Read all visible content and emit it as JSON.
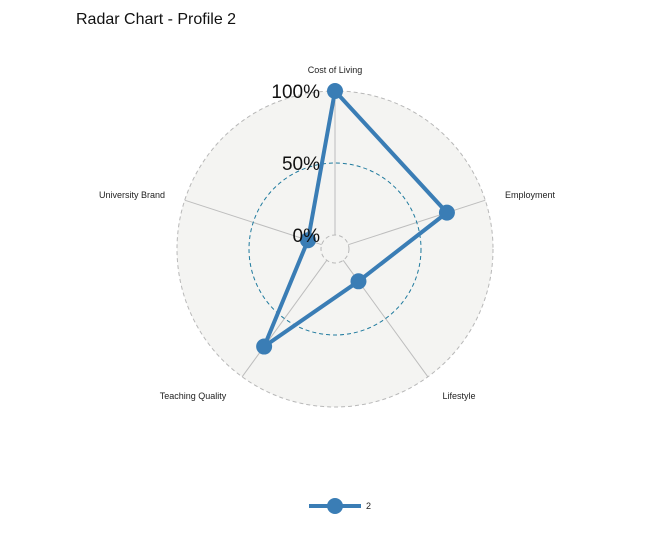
{
  "title": "Radar Chart - Profile 2",
  "chart_data": {
    "type": "radar",
    "axes": [
      "Cost of Living",
      "Employment",
      "Lifestyle",
      "Teaching Quality",
      "University Brand"
    ],
    "grid_labels": [
      "0%",
      "50%",
      "100%"
    ],
    "grid_values": [
      0,
      0.5,
      1.0
    ],
    "range": [
      0,
      1
    ],
    "series": [
      {
        "name": "2",
        "values": [
          1.0,
          0.72,
          0.18,
          0.74,
          0.1
        ]
      }
    ],
    "colors": {
      "series": "#3a7db5",
      "background": "#f4f4f2",
      "mid_grid": "#1f7a9e",
      "outer_grid": "#b8b8b8"
    },
    "legend": "bottom"
  }
}
